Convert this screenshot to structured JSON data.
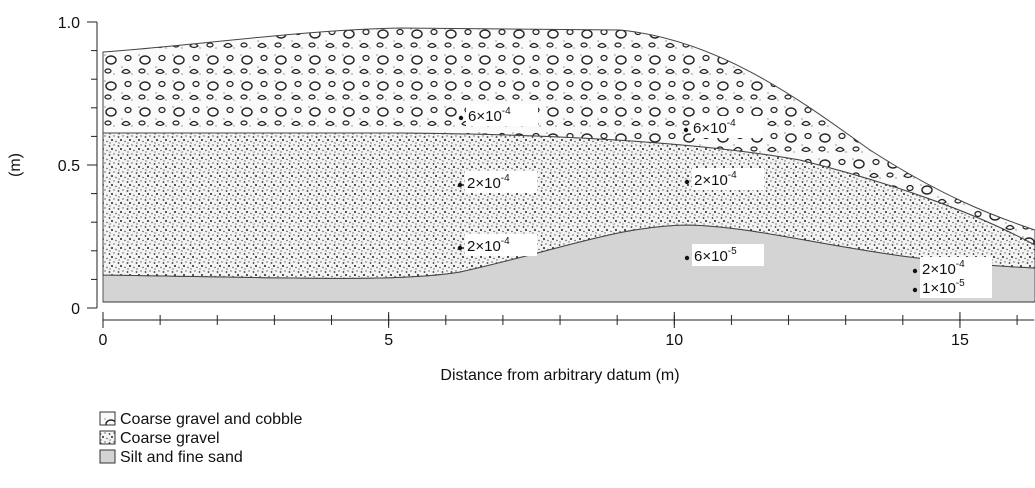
{
  "x_axis": {
    "label": "Distance from arbitrary datum (m)",
    "lim": [
      0,
      16.3
    ],
    "ticks": [
      0,
      5,
      10,
      15
    ]
  },
  "y_axis": {
    "label": "(m)",
    "lim": [
      0,
      1
    ],
    "ticks": [
      0,
      0.5,
      {
        "value": 1,
        "label": "1.0"
      }
    ]
  },
  "measurements": [
    {
      "base": "6×10",
      "exponent": "-4"
    },
    {
      "base": "6×10",
      "exponent": "-4"
    },
    {
      "base": "2×10",
      "exponent": "-4"
    },
    {
      "base": "2×10",
      "exponent": "-4"
    },
    {
      "base": "2×10",
      "exponent": "-4"
    },
    {
      "base": "6×10",
      "exponent": "-5"
    },
    {
      "base": "2×10",
      "exponent": "-4"
    },
    {
      "base": "1×10",
      "exponent": "-5"
    }
  ],
  "legend": [
    "Coarse gravel and cobble",
    "Coarse gravel",
    "Silt and fine sand"
  ]
}
